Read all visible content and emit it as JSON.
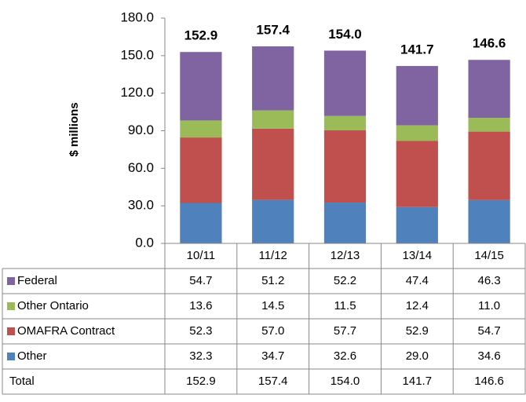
{
  "chart_data": {
    "type": "stacked_bar",
    "ylabel": "$ millions",
    "categories": [
      "10/11",
      "11/12",
      "12/13",
      "13/14",
      "14/15"
    ],
    "series": [
      {
        "name": "Federal",
        "color": "#8064a2",
        "values": [
          54.7,
          51.2,
          52.2,
          47.4,
          46.3
        ],
        "value_labels": [
          "54.7",
          "51.2",
          "52.2",
          "47.4",
          "46.3"
        ]
      },
      {
        "name": "Other Ontario",
        "color": "#9bbb59",
        "values": [
          13.6,
          14.5,
          11.5,
          12.4,
          11.0
        ],
        "value_labels": [
          "13.6",
          "14.5",
          "11.5",
          "12.4",
          "11.0"
        ]
      },
      {
        "name": "OMAFRA Contract",
        "color": "#c0504d",
        "values": [
          52.3,
          57.0,
          57.7,
          52.9,
          54.7
        ],
        "value_labels": [
          "52.3",
          "57.0",
          "57.7",
          "52.9",
          "54.7"
        ]
      },
      {
        "name": "Other",
        "color": "#4f81bd",
        "values": [
          32.3,
          34.7,
          32.6,
          29.0,
          34.6
        ],
        "value_labels": [
          "32.3",
          "34.7",
          "32.6",
          "29.0",
          "34.6"
        ]
      }
    ],
    "totals": {
      "name": "Total",
      "values": [
        152.9,
        157.4,
        154.0,
        141.7,
        146.6
      ],
      "value_labels": [
        "152.9",
        "157.4",
        "154.0",
        "141.7",
        "146.6"
      ]
    },
    "ylim": [
      0,
      180
    ],
    "yticks": [
      {
        "value": 0,
        "label": "0.0"
      },
      {
        "value": 30,
        "label": "30.0"
      },
      {
        "value": 60,
        "label": "60.0"
      },
      {
        "value": 90,
        "label": "90.0"
      },
      {
        "value": 120,
        "label": "120.0"
      },
      {
        "value": 150,
        "label": "150.0"
      },
      {
        "value": 180,
        "label": "180.0"
      }
    ]
  }
}
